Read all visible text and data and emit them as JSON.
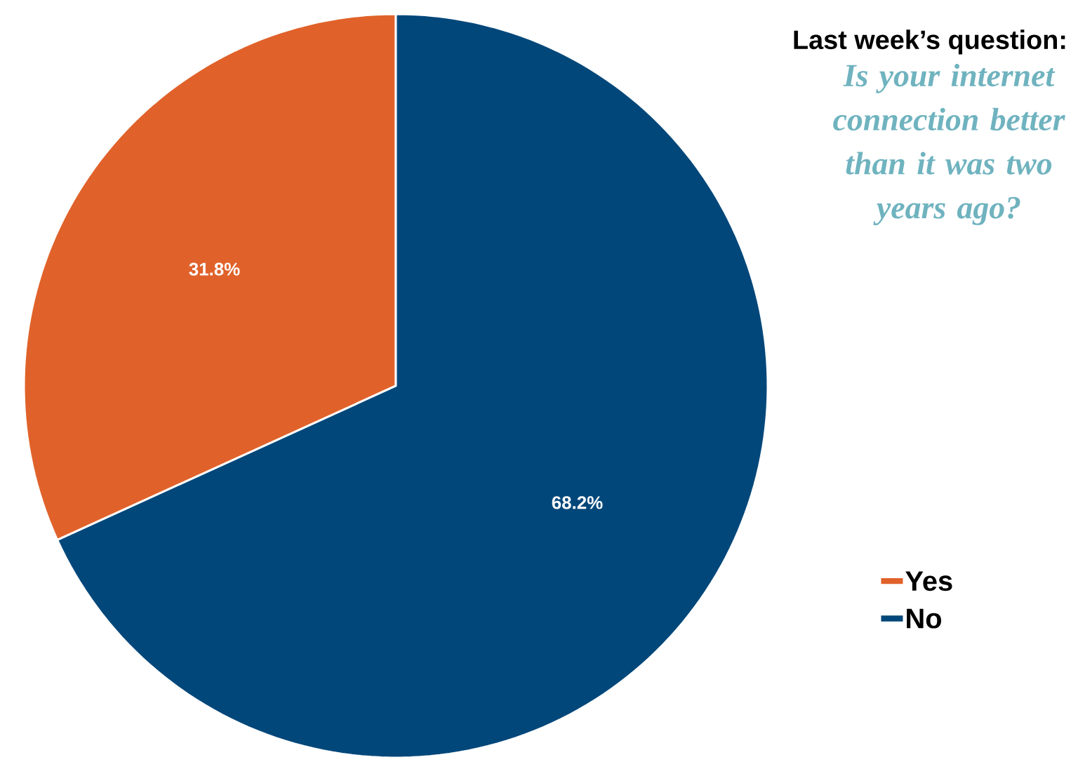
{
  "chart_data": {
    "type": "pie",
    "title": "Last week’s question:",
    "subtitle": "Is your internet connection better than it was two years ago?",
    "categories": [
      "Yes",
      "No"
    ],
    "values": [
      31.8,
      68.2
    ],
    "colors": [
      "#e0622a",
      "#02477a"
    ],
    "value_labels": [
      "31.8%",
      "68.2%"
    ],
    "legend": "bottom right"
  }
}
